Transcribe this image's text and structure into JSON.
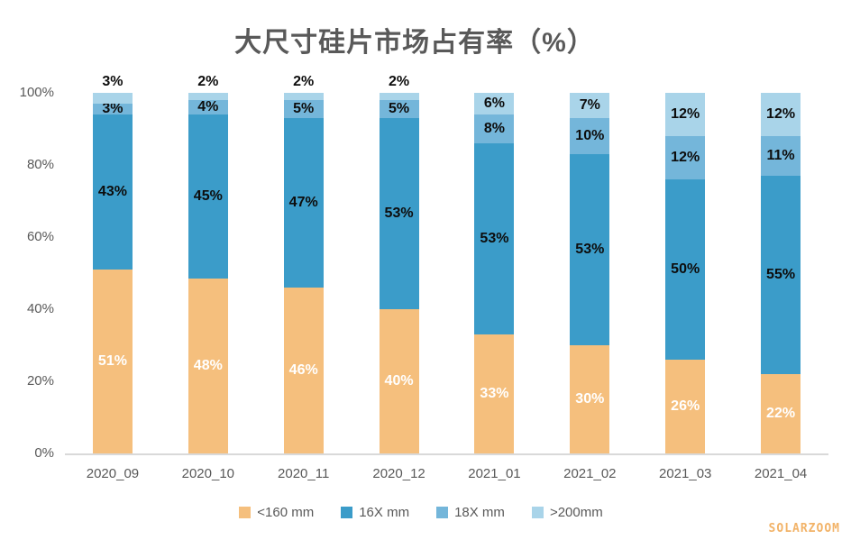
{
  "watermark": "SOLARZOOM",
  "chart_data": {
    "type": "bar",
    "subtype": "stacked-percent",
    "title": "大尺寸硅片市场占有率（%）",
    "xlabel": "",
    "ylabel": "",
    "ylim": [
      0,
      100
    ],
    "grid": false,
    "legend_position": "bottom",
    "y_ticks": [
      "0%",
      "20%",
      "40%",
      "60%",
      "80%",
      "100%"
    ],
    "categories": [
      "2020_09",
      "2020_10",
      "2020_11",
      "2020_12",
      "2021_01",
      "2021_02",
      "2021_03",
      "2021_04"
    ],
    "series": [
      {
        "name": "<160 mm",
        "color": "#f5bf7d",
        "label_color": "#ffffff",
        "values": [
          51,
          48,
          46,
          40,
          33,
          30,
          26,
          22
        ]
      },
      {
        "name": "16X mm",
        "color": "#3b9cc9",
        "label_color": "#0d0d0d",
        "values": [
          43,
          45,
          47,
          53,
          53,
          53,
          50,
          55
        ]
      },
      {
        "name": "18X mm",
        "color": "#74b6da",
        "label_color": "#0d0d0d",
        "values": [
          3,
          4,
          5,
          5,
          8,
          10,
          12,
          11
        ]
      },
      {
        "name": ">200mm",
        "color": "#a9d4e9",
        "label_color": "#0d0d0d",
        "values": [
          3,
          2,
          2,
          2,
          6,
          7,
          12,
          12
        ]
      }
    ],
    "colors": {
      "title_text": "#595959",
      "axis_text": "#595959",
      "axis_line": "#d9d9d9",
      "watermark_text": "#f2b368"
    }
  }
}
